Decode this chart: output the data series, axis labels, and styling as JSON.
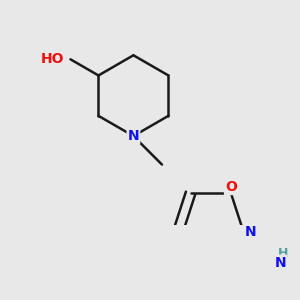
{
  "background_color": "#e8e8e8",
  "bond_color": "#1a1a1a",
  "bond_width": 1.8,
  "atom_colors": {
    "C": "#1a1a1a",
    "N": "#1010ee",
    "O": "#ee1010",
    "H": "#4fa0a0"
  },
  "font_size_large": 10,
  "font_size_small": 9,
  "figsize": [
    3.0,
    3.0
  ],
  "dpi": 100
}
